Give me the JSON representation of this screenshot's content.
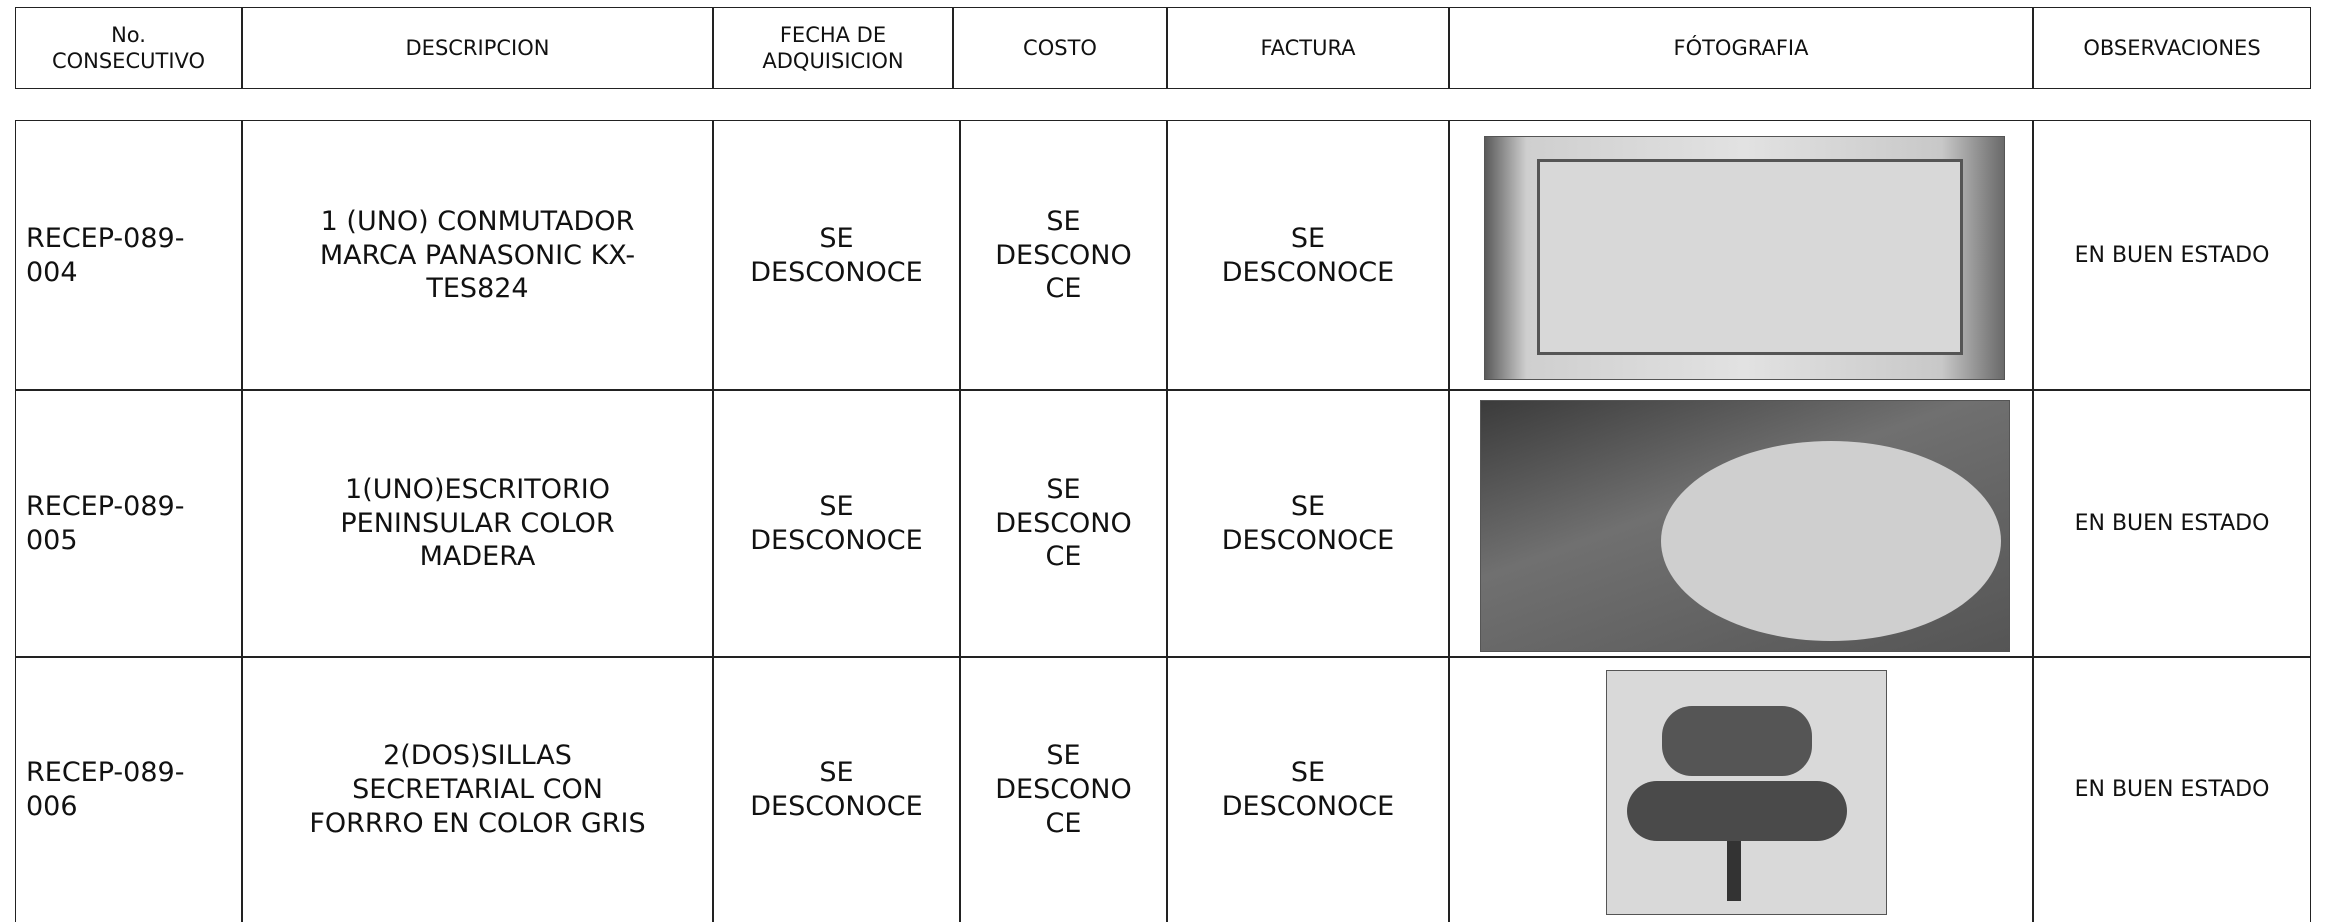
{
  "header": {
    "columns": [
      [
        "No.",
        "CONSECUTIVO"
      ],
      [
        "DESCRIPCION"
      ],
      [
        "FECHA DE",
        "ADQUISICION"
      ],
      [
        "COSTO"
      ],
      [
        "FACTURA"
      ],
      [
        "FÓTOGRAFIA"
      ],
      [
        "OBSERVACIONES"
      ]
    ]
  },
  "table": {
    "rows": [
      {
        "consecutivo": [
          "RECEP-089-",
          "004"
        ],
        "descripcion": [
          "1 (UNO) CONMUTADOR",
          "MARCA PANASONIC KX-",
          "TES824"
        ],
        "fecha": [
          "SE",
          "DESCONOCE"
        ],
        "costo": [
          "SE",
          "DESCONO",
          "CE"
        ],
        "factura": [
          "SE",
          "DESCONOCE"
        ],
        "observaciones": [
          "EN BUEN ESTADO"
        ]
      },
      {
        "consecutivo": [
          "RECEP-089-",
          "005"
        ],
        "descripcion": [
          "1(UNO)ESCRITORIO",
          "PENINSULAR COLOR",
          "MADERA"
        ],
        "fecha": [
          "SE",
          "DESCONOCE"
        ],
        "costo": [
          "SE",
          "DESCONO",
          "CE"
        ],
        "factura": [
          "SE",
          "DESCONOCE"
        ],
        "observaciones": [
          "EN BUEN ESTADO"
        ]
      },
      {
        "consecutivo": [
          "RECEP-089-",
          "006"
        ],
        "descripcion": [
          "2(DOS)SILLAS",
          "SECRETARIAL CON",
          "FORRRO EN COLOR GRIS"
        ],
        "fecha": [
          "SE",
          "DESCONOCE"
        ],
        "costo": [
          "SE",
          "DESCONO",
          "CE"
        ],
        "factura": [
          "SE",
          "DESCONOCE"
        ],
        "observaciones": [
          "EN BUEN ESTADO"
        ]
      }
    ]
  }
}
